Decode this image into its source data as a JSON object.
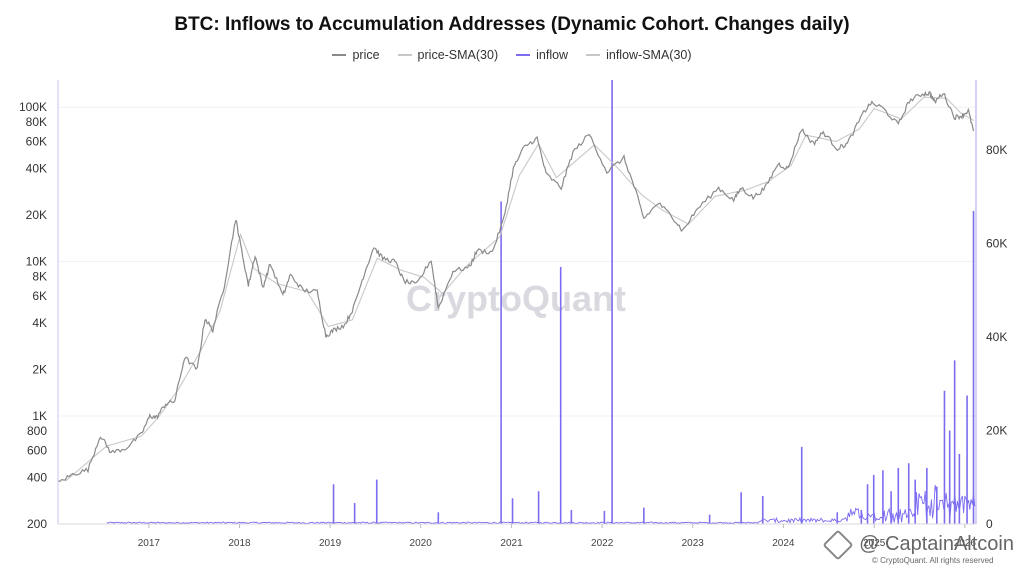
{
  "title": "BTC: Inflows to Accumulation Addresses (Dynamic Cohort. Changes daily)",
  "legend": [
    {
      "label": "price",
      "color": "#8a8a8a"
    },
    {
      "label": "price-SMA(30)",
      "color": "#c8c8c8"
    },
    {
      "label": "inflow",
      "color": "#7b6cf0"
    },
    {
      "label": "inflow-SMA(30)",
      "color": "#c8c8c8"
    }
  ],
  "watermark": "CryptoQuant",
  "credit": "@ CaptainAltcoin",
  "copyright": "© CryptoQuant. All rights reserved",
  "chart_data": {
    "type": "line",
    "title": "BTC: Inflows to Accumulation Addresses (Dynamic Cohort. Changes daily)",
    "x_range": [
      "2016-01-01",
      "2026-02-15"
    ],
    "x_ticks": [
      "2017",
      "2018",
      "2019",
      "2020",
      "2021",
      "2022",
      "2023",
      "2024",
      "2025",
      "2026"
    ],
    "left_axis": {
      "scale": "log",
      "range": [
        200,
        150000
      ],
      "ticks": [
        200,
        400,
        600,
        800,
        1000,
        2000,
        4000,
        6000,
        8000,
        10000,
        20000,
        40000,
        60000,
        80000,
        100000
      ],
      "tick_labels": [
        "200",
        "400",
        "600",
        "800",
        "1K",
        "2K",
        "4K",
        "6K",
        "8K",
        "10K",
        "20K",
        "40K",
        "60K",
        "80K",
        "100K"
      ]
    },
    "right_axis": {
      "scale": "linear",
      "range": [
        0,
        95000
      ],
      "ticks": [
        0,
        20000,
        40000,
        60000,
        80000
      ],
      "tick_labels": [
        "0",
        "20K",
        "40K",
        "60K",
        "80K"
      ]
    },
    "series": [
      {
        "name": "price",
        "axis": "left",
        "color": "#8a8a8a",
        "points": [
          [
            "2016-01-01",
            370
          ],
          [
            "2016-03-01",
            420
          ],
          [
            "2016-05-01",
            450
          ],
          [
            "2016-06-20",
            750
          ],
          [
            "2016-08-01",
            580
          ],
          [
            "2016-10-01",
            620
          ],
          [
            "2016-12-01",
            760
          ],
          [
            "2017-01-05",
            1000
          ],
          [
            "2017-02-01",
            980
          ],
          [
            "2017-03-10",
            1200
          ],
          [
            "2017-04-15",
            1250
          ],
          [
            "2017-05-25",
            2400
          ],
          [
            "2017-07-15",
            2000
          ],
          [
            "2017-08-15",
            4300
          ],
          [
            "2017-09-15",
            3600
          ],
          [
            "2017-11-01",
            7000
          ],
          [
            "2017-12-17",
            19000
          ],
          [
            "2018-01-01",
            14000
          ],
          [
            "2018-02-06",
            7000
          ],
          [
            "2018-03-05",
            11000
          ],
          [
            "2018-04-05",
            6800
          ],
          [
            "2018-05-05",
            9700
          ],
          [
            "2018-06-25",
            6000
          ],
          [
            "2018-07-25",
            8200
          ],
          [
            "2018-09-15",
            6500
          ],
          [
            "2018-11-10",
            6400
          ],
          [
            "2018-12-15",
            3300
          ],
          [
            "2019-01-15",
            3600
          ],
          [
            "2019-03-01",
            3900
          ],
          [
            "2019-04-05",
            5000
          ],
          [
            "2019-05-15",
            8000
          ],
          [
            "2019-06-26",
            12500
          ],
          [
            "2019-08-01",
            10500
          ],
          [
            "2019-09-20",
            10000
          ],
          [
            "2019-10-25",
            7500
          ],
          [
            "2019-12-15",
            7100
          ],
          [
            "2020-02-12",
            10300
          ],
          [
            "2020-03-12",
            5000
          ],
          [
            "2020-05-10",
            8700
          ],
          [
            "2020-07-15",
            9200
          ],
          [
            "2020-08-15",
            11800
          ],
          [
            "2020-10-15",
            11500
          ],
          [
            "2020-12-01",
            19000
          ],
          [
            "2021-01-08",
            40000
          ],
          [
            "2021-02-20",
            55000
          ],
          [
            "2021-04-14",
            63000
          ],
          [
            "2021-05-20",
            37000
          ],
          [
            "2021-07-20",
            30000
          ],
          [
            "2021-09-05",
            51000
          ],
          [
            "2021-11-10",
            67000
          ],
          [
            "2022-01-20",
            38000
          ],
          [
            "2022-03-30",
            47000
          ],
          [
            "2022-05-15",
            29000
          ],
          [
            "2022-06-18",
            19000
          ],
          [
            "2022-08-15",
            24000
          ],
          [
            "2022-10-15",
            19200
          ],
          [
            "2022-11-21",
            15800
          ],
          [
            "2023-01-20",
            22000
          ],
          [
            "2023-04-15",
            30000
          ],
          [
            "2023-06-15",
            25000
          ],
          [
            "2023-07-15",
            30000
          ],
          [
            "2023-09-01",
            26000
          ],
          [
            "2023-10-20",
            30000
          ],
          [
            "2023-12-10",
            43000
          ],
          [
            "2024-01-20",
            40000
          ],
          [
            "2024-03-13",
            72000
          ],
          [
            "2024-05-01",
            58000
          ],
          [
            "2024-06-10",
            69000
          ],
          [
            "2024-08-05",
            54000
          ],
          [
            "2024-09-15",
            58000
          ],
          [
            "2024-11-15",
            90000
          ],
          [
            "2024-12-17",
            106000
          ],
          [
            "2025-02-01",
            100000
          ],
          [
            "2025-04-08",
            77000
          ],
          [
            "2025-05-22",
            110000
          ],
          [
            "2025-07-14",
            122000
          ],
          [
            "2025-08-14",
            123000
          ],
          [
            "2025-09-01",
            108000
          ],
          [
            "2025-10-06",
            124000
          ],
          [
            "2025-11-20",
            86000
          ],
          [
            "2025-12-20",
            88000
          ],
          [
            "2026-01-15",
            95000
          ],
          [
            "2026-02-05",
            70000
          ]
        ]
      },
      {
        "name": "price-SMA(30)",
        "axis": "left",
        "color": "#c8c8c8",
        "points": [
          [
            "2016-02-01",
            380
          ],
          [
            "2016-07-15",
            640
          ],
          [
            "2016-12-01",
            740
          ],
          [
            "2017-02-10",
            990
          ],
          [
            "2017-05-01",
            1500
          ],
          [
            "2017-08-01",
            2700
          ],
          [
            "2017-10-15",
            4800
          ],
          [
            "2018-01-05",
            15000
          ],
          [
            "2018-03-01",
            9000
          ],
          [
            "2018-06-01",
            7200
          ],
          [
            "2018-10-01",
            6400
          ],
          [
            "2018-12-25",
            3800
          ],
          [
            "2019-04-01",
            4200
          ],
          [
            "2019-07-10",
            10500
          ],
          [
            "2019-10-15",
            8800
          ],
          [
            "2020-01-15",
            7900
          ],
          [
            "2020-03-30",
            6200
          ],
          [
            "2020-07-01",
            9300
          ],
          [
            "2020-11-15",
            14500
          ],
          [
            "2021-02-01",
            36000
          ],
          [
            "2021-04-20",
            58000
          ],
          [
            "2021-07-01",
            35000
          ],
          [
            "2021-10-01",
            47000
          ],
          [
            "2021-12-01",
            57000
          ],
          [
            "2022-03-01",
            41000
          ],
          [
            "2022-06-10",
            27000
          ],
          [
            "2022-09-01",
            21500
          ],
          [
            "2022-12-15",
            17500
          ],
          [
            "2023-04-01",
            26500
          ],
          [
            "2023-08-01",
            29000
          ],
          [
            "2023-11-01",
            33000
          ],
          [
            "2024-02-01",
            42000
          ],
          [
            "2024-04-01",
            66000
          ],
          [
            "2024-08-01",
            60000
          ],
          [
            "2024-11-01",
            72000
          ],
          [
            "2025-01-01",
            98000
          ],
          [
            "2025-04-20",
            84000
          ],
          [
            "2025-07-20",
            116000
          ],
          [
            "2025-10-20",
            114000
          ],
          [
            "2025-12-15",
            92000
          ],
          [
            "2026-02-05",
            82000
          ]
        ]
      },
      {
        "name": "inflow",
        "axis": "right",
        "color": "#7b6cf0",
        "spikes": [
          [
            "2019-01-15",
            8500
          ],
          [
            "2019-04-10",
            4500
          ],
          [
            "2019-07-08",
            9500
          ],
          [
            "2020-03-12",
            2500
          ],
          [
            "2020-11-20",
            69000
          ],
          [
            "2021-01-05",
            5500
          ],
          [
            "2021-04-20",
            7000
          ],
          [
            "2021-07-18",
            55000
          ],
          [
            "2021-08-30",
            3000
          ],
          [
            "2022-01-10",
            2800
          ],
          [
            "2022-02-10",
            95000
          ],
          [
            "2022-06-18",
            3500
          ],
          [
            "2023-03-10",
            2000
          ],
          [
            "2023-07-15",
            6800
          ],
          [
            "2023-10-10",
            6000
          ],
          [
            "2024-03-15",
            16500
          ],
          [
            "2024-08-05",
            2500
          ],
          [
            "2024-11-10",
            3000
          ],
          [
            "2024-12-05",
            8500
          ],
          [
            "2024-12-30",
            10500
          ],
          [
            "2025-02-05",
            11500
          ],
          [
            "2025-03-10",
            7000
          ],
          [
            "2025-04-08",
            12000
          ],
          [
            "2025-05-20",
            13000
          ],
          [
            "2025-06-15",
            9500
          ],
          [
            "2025-08-01",
            12000
          ],
          [
            "2025-09-10",
            8000
          ],
          [
            "2025-10-11",
            28500
          ],
          [
            "2025-11-01",
            20000
          ],
          [
            "2025-11-21",
            35000
          ],
          [
            "2025-12-10",
            15000
          ],
          [
            "2026-01-10",
            27500
          ],
          [
            "2026-02-05",
            67000
          ]
        ]
      }
    ],
    "grid": "horizontal",
    "legend_position": "top-center"
  }
}
